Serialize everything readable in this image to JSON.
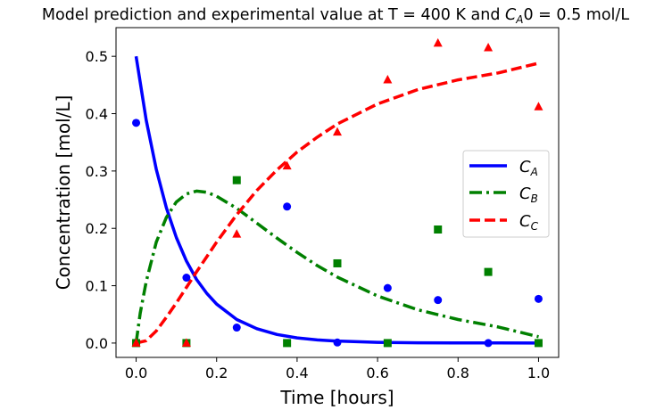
{
  "chart_data": {
    "type": "line",
    "title_main": "Model prediction and experimental value at T = 400 K and ",
    "title_symbol": "C",
    "title_subscript": "A",
    "title_end": "0 = 0.5 mol/L",
    "xlabel": "Time [hours]",
    "ylabel": "Concentration [mol/L]",
    "xlim": [
      -0.05,
      1.05
    ],
    "ylim": [
      -0.025,
      0.55
    ],
    "xticks": [
      0.0,
      0.2,
      0.4,
      0.6,
      0.8,
      1.0
    ],
    "xtick_labels": [
      "0.0",
      "0.2",
      "0.4",
      "0.6",
      "0.8",
      "1.0"
    ],
    "yticks": [
      0.0,
      0.1,
      0.2,
      0.3,
      0.4,
      0.5
    ],
    "ytick_labels": [
      "0.0",
      "0.1",
      "0.2",
      "0.3",
      "0.4",
      "0.5"
    ],
    "grid": false,
    "legend_position": "center-right",
    "model_series": [
      {
        "name": "C_A",
        "label_main": "C",
        "label_sub": "A",
        "color": "#0000ff",
        "style": "solid",
        "x": [
          0.0,
          0.025,
          0.05,
          0.075,
          0.1,
          0.125,
          0.15,
          0.175,
          0.2,
          0.25,
          0.3,
          0.35,
          0.4,
          0.45,
          0.5,
          0.6,
          0.7,
          0.8,
          0.9,
          1.0
        ],
        "y": [
          0.5,
          0.389,
          0.303,
          0.236,
          0.184,
          0.143,
          0.111,
          0.087,
          0.068,
          0.041,
          0.025,
          0.015,
          0.009,
          0.0055,
          0.0034,
          0.0012,
          0.0005,
          0.0002,
          0.0001,
          0.0
        ]
      },
      {
        "name": "C_B",
        "label_main": "C",
        "label_sub": "B",
        "color": "#008000",
        "style": "dashdot",
        "x": [
          0.0,
          0.01,
          0.025,
          0.05,
          0.075,
          0.1,
          0.125,
          0.15,
          0.175,
          0.2,
          0.25,
          0.3,
          0.35,
          0.4,
          0.45,
          0.5,
          0.6,
          0.7,
          0.8,
          0.9,
          1.0
        ],
        "y": [
          0.0,
          0.052,
          0.107,
          0.176,
          0.219,
          0.246,
          0.26,
          0.265,
          0.263,
          0.256,
          0.235,
          0.209,
          0.183,
          0.158,
          0.135,
          0.115,
          0.082,
          0.058,
          0.041,
          0.028,
          0.011
        ]
      },
      {
        "name": "C_C",
        "label_main": "C",
        "label_sub": "C",
        "color": "#ff0000",
        "style": "dashed",
        "x": [
          0.0,
          0.025,
          0.05,
          0.075,
          0.1,
          0.125,
          0.15,
          0.175,
          0.2,
          0.25,
          0.3,
          0.35,
          0.4,
          0.45,
          0.5,
          0.6,
          0.7,
          0.8,
          0.9,
          1.0
        ],
        "y": [
          0.0,
          0.004,
          0.021,
          0.045,
          0.07,
          0.097,
          0.124,
          0.15,
          0.176,
          0.224,
          0.266,
          0.302,
          0.333,
          0.359,
          0.382,
          0.417,
          0.442,
          0.459,
          0.471,
          0.488
        ]
      }
    ],
    "experimental_series": [
      {
        "name": "C_A experimental",
        "marker": "circle",
        "color": "#0000ff",
        "x": [
          0.0,
          0.125,
          0.25,
          0.375,
          0.5,
          0.625,
          0.75,
          0.875,
          1.0
        ],
        "y": [
          0.384,
          0.114,
          0.027,
          0.238,
          0.001,
          0.096,
          0.075,
          0.0,
          0.077
        ]
      },
      {
        "name": "C_B experimental",
        "marker": "square",
        "color": "#008000",
        "x": [
          0.0,
          0.125,
          0.25,
          0.375,
          0.5,
          0.625,
          0.75,
          0.875,
          1.0
        ],
        "y": [
          0.0,
          0.0,
          0.284,
          0.0,
          0.139,
          0.0,
          0.198,
          0.124,
          0.0
        ]
      },
      {
        "name": "C_C experimental",
        "marker": "triangle",
        "color": "#ff0000",
        "x": [
          0.0,
          0.125,
          0.25,
          0.375,
          0.5,
          0.625,
          0.75,
          0.875,
          1.0
        ],
        "y": [
          0.0,
          0.0,
          0.19,
          0.309,
          0.368,
          0.459,
          0.523,
          0.515,
          0.412
        ]
      }
    ]
  }
}
